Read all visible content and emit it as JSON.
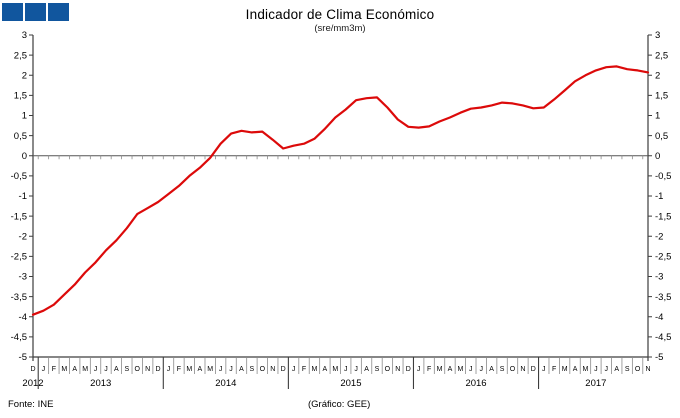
{
  "logo": {
    "block_color": "#11569E",
    "blocks": 3
  },
  "title": "Indicador de Clima Económico",
  "subtitle": "(sre/mm3m)",
  "footer": {
    "source": "Fonte:  INE",
    "credit": "(Gráfico:  GEE)"
  },
  "chart_data": {
    "type": "line",
    "title": "Indicador de Clima Económico",
    "subtitle": "(sre/mm3m)",
    "series_name": "Indicador de Clima Económico (mm3m)",
    "line_color": "#DC0A0A",
    "axis_color": "#3d3d3d",
    "tick_color": "#8a8a8a",
    "ylim": [
      -5,
      3
    ],
    "ytick_step": 0.5,
    "ytick_labels": [
      "3",
      "2,5",
      "2",
      "1,5",
      "1",
      "0,5",
      "0",
      "-0,5",
      "-1",
      "-1,5",
      "-2",
      "-2,5",
      "-3",
      "-3,5",
      "-4",
      "-4,5",
      "-5"
    ],
    "grid": false,
    "zero_axis": true,
    "dual_y_axis": true,
    "years": [
      {
        "label": "2012",
        "count": 1
      },
      {
        "label": "2013",
        "count": 12
      },
      {
        "label": "2014",
        "count": 12
      },
      {
        "label": "2015",
        "count": 12
      },
      {
        "label": "2016",
        "count": 12
      },
      {
        "label": "2017",
        "count": 11
      }
    ],
    "month_letters": [
      "D",
      "J",
      "F",
      "M",
      "A",
      "M",
      "J",
      "J",
      "A",
      "S",
      "O",
      "N",
      "D",
      "J",
      "F",
      "M",
      "A",
      "M",
      "J",
      "J",
      "A",
      "S",
      "O",
      "N",
      "D",
      "J",
      "F",
      "M",
      "A",
      "M",
      "J",
      "J",
      "A",
      "S",
      "O",
      "N",
      "D",
      "J",
      "F",
      "M",
      "A",
      "M",
      "J",
      "J",
      "A",
      "S",
      "O",
      "N",
      "D",
      "J",
      "F",
      "M",
      "A",
      "M",
      "J",
      "J",
      "A",
      "S",
      "O",
      "N"
    ],
    "values": [
      -3.95,
      -3.85,
      -3.7,
      -3.45,
      -3.2,
      -2.9,
      -2.65,
      -2.35,
      -2.1,
      -1.8,
      -1.45,
      -1.3,
      -1.15,
      -0.95,
      -0.75,
      -0.5,
      -0.3,
      -0.05,
      0.3,
      0.55,
      0.62,
      0.58,
      0.6,
      0.4,
      0.18,
      0.25,
      0.3,
      0.42,
      0.67,
      0.95,
      1.15,
      1.38,
      1.43,
      1.45,
      1.2,
      0.9,
      0.72,
      0.7,
      0.73,
      0.85,
      0.95,
      1.07,
      1.17,
      1.2,
      1.25,
      1.32,
      1.3,
      1.25,
      1.18,
      1.2,
      1.4,
      1.62,
      1.85,
      2.0,
      2.12,
      2.2,
      2.22,
      2.15,
      2.12,
      2.07
    ]
  }
}
